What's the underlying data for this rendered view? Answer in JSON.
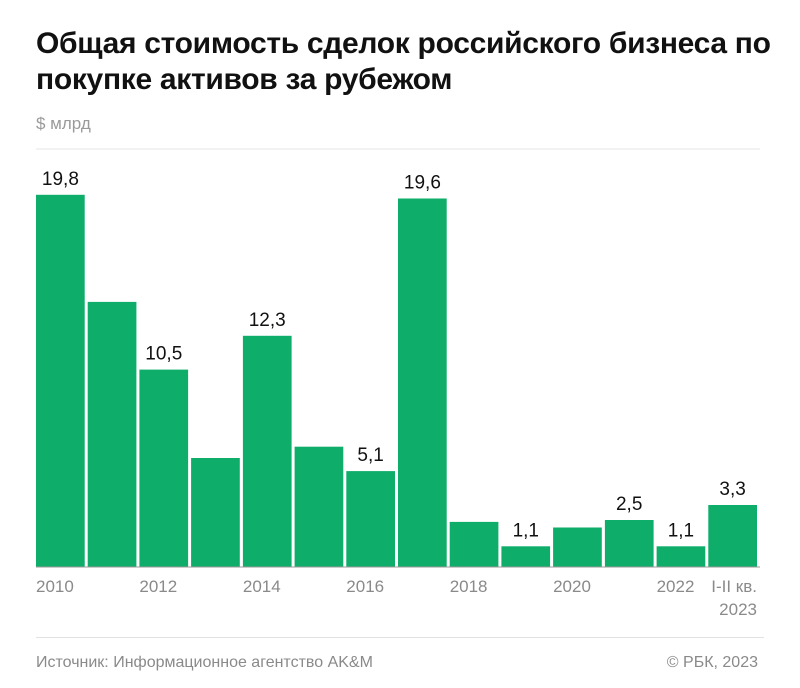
{
  "title": "Общая стоимость сделок российского бизнеса по покупке активов за рубежом",
  "unit_label": "$ млрд",
  "source": "Источник: Информационное агентство AK&M",
  "copyright": "© РБК, 2023",
  "colors": {
    "bar": "#0ead69",
    "baseline": "#9a9a9a",
    "grid": "#e6e6e6",
    "tick_text": "#8a8a8a",
    "label_text": "#111111"
  },
  "chart_data": {
    "type": "bar",
    "categories": [
      "2010",
      "2011",
      "2012",
      "2013",
      "2014",
      "2015",
      "2016",
      "2017",
      "2018",
      "2019",
      "2020",
      "2021",
      "2022",
      "I-II кв. 2023"
    ],
    "values": [
      19.8,
      14.1,
      10.5,
      5.8,
      12.3,
      6.4,
      5.1,
      19.6,
      2.4,
      1.1,
      2.1,
      2.5,
      1.1,
      3.3
    ],
    "data_labels": [
      "19,8",
      "",
      "10,5",
      "",
      "12,3",
      "",
      "5,1",
      "19,6",
      "",
      "1,1",
      "",
      "2,5",
      "1,1",
      "3,3"
    ],
    "x_tick_labels": [
      "2010",
      "",
      "2012",
      "",
      "2014",
      "",
      "2016",
      "",
      "2018",
      "",
      "2020",
      "",
      "2022",
      "I-II кв.\n2023"
    ],
    "ylabel": "$ млрд",
    "ylim": [
      0,
      21
    ],
    "grid": false
  }
}
